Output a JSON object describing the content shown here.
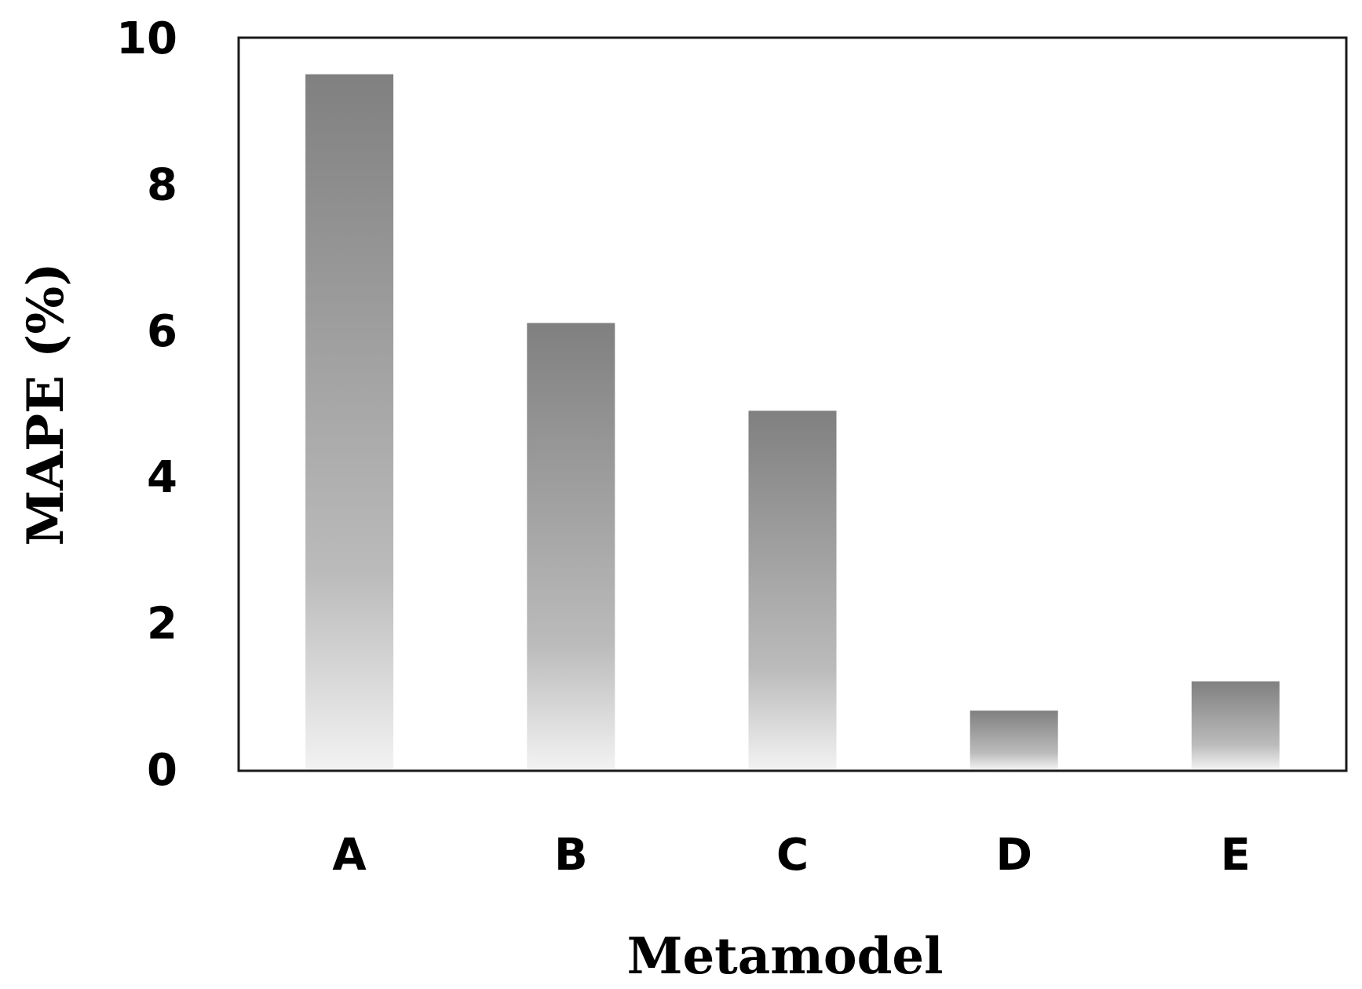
{
  "chart_data": {
    "type": "bar",
    "title": "",
    "xlabel": "Metamodel",
    "ylabel": "MAPE (%)",
    "categories": [
      "A",
      "B",
      "C",
      "D",
      "E"
    ],
    "values": [
      9.5,
      6.1,
      4.9,
      0.8,
      1.2
    ],
    "ylim": [
      0,
      10
    ],
    "yticks": [
      "0",
      "2",
      "4",
      "6",
      "8",
      "10"
    ],
    "grid": false,
    "legend": "none",
    "bar_gradient": {
      "top": "#808080",
      "middle": "#bbbbbb",
      "bottom": "#f2f2f2"
    },
    "frame_color": "#1a1a1a"
  }
}
